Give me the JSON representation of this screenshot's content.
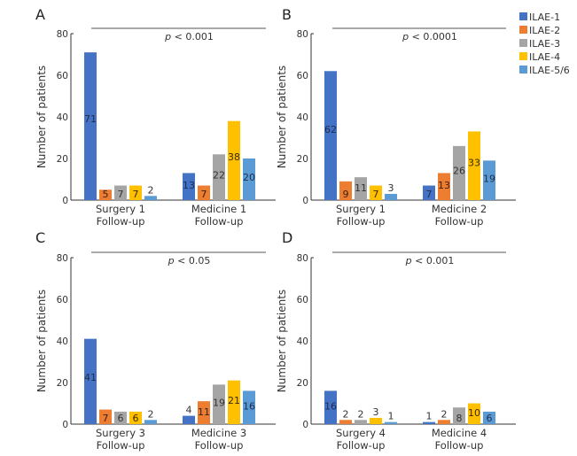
{
  "legend": {
    "items": [
      {
        "label": "ILAE-1",
        "color": "#4472C4"
      },
      {
        "label": "ILAE-2",
        "color": "#ED7D31"
      },
      {
        "label": "ILAE-3",
        "color": "#A5A5A5"
      },
      {
        "label": "ILAE-4",
        "color": "#FFC000"
      },
      {
        "label": "ILAE-5/6",
        "color": "#5B9BD5"
      }
    ]
  },
  "chart_data": [
    {
      "type": "bar",
      "panel": "A",
      "title": "",
      "ylabel": "Number of patients",
      "xlabel": "",
      "ylim": [
        0,
        80
      ],
      "yticks": [
        0,
        20,
        40,
        60,
        80
      ],
      "annotation": {
        "p_symbol": "p",
        "p_text": " < 0.001"
      },
      "categories": [
        [
          "Surgery 1",
          "Follow-up"
        ],
        [
          "Medicine 1",
          "Follow-up"
        ]
      ],
      "series": [
        {
          "name": "ILAE-1",
          "values": [
            71,
            13
          ]
        },
        {
          "name": "ILAE-2",
          "values": [
            5,
            7
          ]
        },
        {
          "name": "ILAE-3",
          "values": [
            7,
            22
          ]
        },
        {
          "name": "ILAE-4",
          "values": [
            7,
            38
          ]
        },
        {
          "name": "ILAE-5/6",
          "values": [
            2,
            20
          ]
        }
      ]
    },
    {
      "type": "bar",
      "panel": "B",
      "title": "",
      "ylabel": "Number of patients",
      "xlabel": "",
      "ylim": [
        0,
        80
      ],
      "yticks": [
        0,
        20,
        40,
        60,
        80
      ],
      "annotation": {
        "p_symbol": "p",
        "p_text": " < 0.0001"
      },
      "categories": [
        [
          "Surgery 1",
          "Follow-up"
        ],
        [
          "Medicine 2",
          "Follow-up"
        ]
      ],
      "series": [
        {
          "name": "ILAE-1",
          "values": [
            62,
            7
          ]
        },
        {
          "name": "ILAE-2",
          "values": [
            9,
            13
          ]
        },
        {
          "name": "ILAE-3",
          "values": [
            11,
            26
          ]
        },
        {
          "name": "ILAE-4",
          "values": [
            7,
            33
          ]
        },
        {
          "name": "ILAE-5/6",
          "values": [
            3,
            19
          ]
        }
      ]
    },
    {
      "type": "bar",
      "panel": "C",
      "title": "",
      "ylabel": "Number of patients",
      "xlabel": "",
      "ylim": [
        0,
        80
      ],
      "yticks": [
        0,
        20,
        40,
        60,
        80
      ],
      "annotation": {
        "p_symbol": "p",
        "p_text": " < 0.05"
      },
      "categories": [
        [
          "Surgery 3",
          "Follow-up"
        ],
        [
          "Medicine 3",
          "Follow-up"
        ]
      ],
      "series": [
        {
          "name": "ILAE-1",
          "values": [
            41,
            4
          ]
        },
        {
          "name": "ILAE-2",
          "values": [
            7,
            11
          ]
        },
        {
          "name": "ILAE-3",
          "values": [
            6,
            19
          ]
        },
        {
          "name": "ILAE-4",
          "values": [
            6,
            21
          ]
        },
        {
          "name": "ILAE-5/6",
          "values": [
            2,
            16
          ]
        }
      ]
    },
    {
      "type": "bar",
      "panel": "D",
      "title": "",
      "ylabel": "Number of patients",
      "xlabel": "",
      "ylim": [
        0,
        80
      ],
      "yticks": [
        0,
        20,
        40,
        60,
        80
      ],
      "annotation": {
        "p_symbol": "p",
        "p_text": " < 0.001"
      },
      "categories": [
        [
          "Surgery 4",
          "Follow-up"
        ],
        [
          "Medicine 4",
          "Follow-up"
        ]
      ],
      "series": [
        {
          "name": "ILAE-1",
          "values": [
            16,
            1
          ]
        },
        {
          "name": "ILAE-2",
          "values": [
            2,
            2
          ]
        },
        {
          "name": "ILAE-3",
          "values": [
            2,
            8
          ]
        },
        {
          "name": "ILAE-4",
          "values": [
            3,
            10
          ]
        },
        {
          "name": "ILAE-5/6",
          "values": [
            1,
            6
          ]
        }
      ]
    }
  ]
}
